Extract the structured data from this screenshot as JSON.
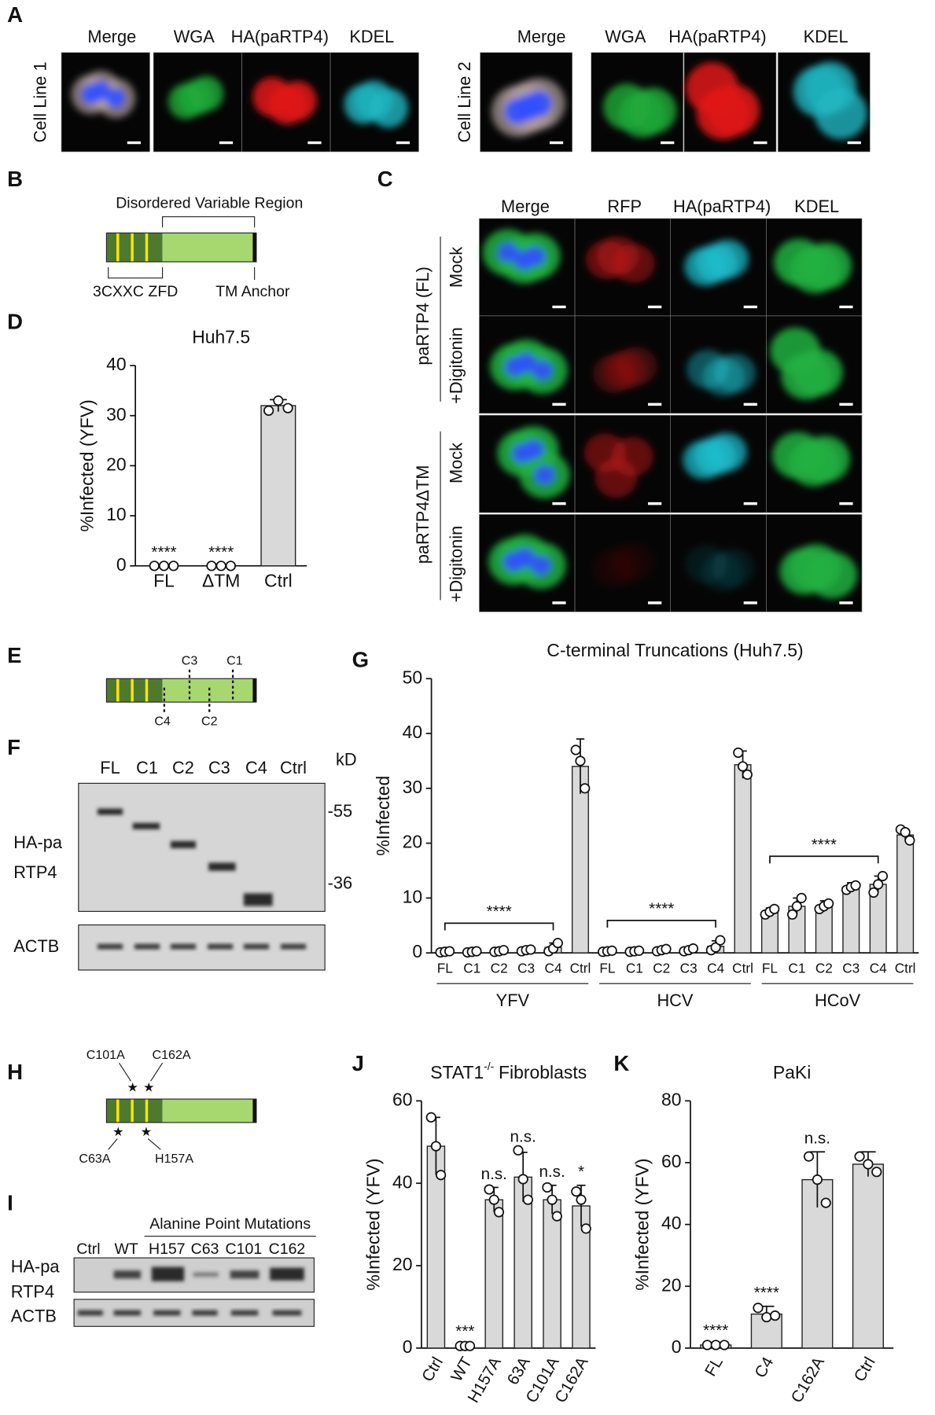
{
  "panel_labels": [
    "A",
    "B",
    "C",
    "D",
    "E",
    "F",
    "G",
    "H",
    "I",
    "J",
    "K"
  ],
  "panel_a": {
    "columns": [
      "Merge",
      "WGA",
      "HA(paRTP4)",
      "KDEL"
    ],
    "rows": [
      "Cell Line 1",
      "Cell Line 2"
    ]
  },
  "panel_b": {
    "region": "Disordered Variable Region",
    "zfd": "3CXXC ZFD",
    "tm": "TM Anchor"
  },
  "panel_c": {
    "columns": [
      "Merge",
      "RFP",
      "HA(paRTP4)",
      "KDEL"
    ],
    "constructs": [
      "paRTP4 (FL)",
      "paRTP4ΔTM"
    ],
    "treatments": [
      "Mock",
      "+Digitonin"
    ]
  },
  "panel_e": {
    "truncations": [
      "C1",
      "C2",
      "C3",
      "C4"
    ]
  },
  "panel_f": {
    "lanes": [
      "FL",
      "C1",
      "C2",
      "C3",
      "C4",
      "Ctrl"
    ],
    "unit": "kD",
    "markers": [
      "-55",
      "-36"
    ],
    "blots": [
      "HA-pa",
      "RTP4",
      "ACTB"
    ]
  },
  "panel_h": {
    "mutations": [
      "C63A",
      "C101A",
      "H157A",
      "C162A"
    ]
  },
  "panel_i": {
    "header": "Alanine Point Mutations",
    "lanes": [
      "Ctrl",
      "WT",
      "H157",
      "C63",
      "C101",
      "C162"
    ],
    "blots": [
      "HA-pa",
      "RTP4",
      "ACTB"
    ]
  },
  "chart_data": [
    {
      "type": "bar",
      "title": "Huh7.5",
      "ylabel": "%Infected (YFV)",
      "color": "#d9d9d9",
      "categories": [
        "FL",
        "ΔTM",
        "Ctrl"
      ],
      "values": [
        0,
        0,
        32
      ],
      "errors": [
        0,
        0,
        1.2
      ],
      "points": [
        [
          0,
          0,
          0
        ],
        [
          0,
          0,
          0
        ],
        [
          31,
          33,
          31.5
        ]
      ],
      "annotations": [
        "****",
        "****",
        null
      ],
      "ylim": [
        0,
        40
      ],
      "yticks": [
        0,
        10,
        20,
        30,
        40
      ]
    },
    {
      "type": "bar",
      "title": "C-terminal Truncations (Huh7.5)",
      "ylabel": "%Infected",
      "color": "#d9d9d9",
      "categories": [
        "FL",
        "C1",
        "C2",
        "C3",
        "C4",
        "Ctrl",
        "FL",
        "C1",
        "C2",
        "C3",
        "C4",
        "Ctrl",
        "FL",
        "C1",
        "C2",
        "C3",
        "C4",
        "Ctrl"
      ],
      "groups": [
        "YFV",
        "HCV",
        "HCoV"
      ],
      "group_annotations": [
        "****",
        "****",
        "****"
      ],
      "values": [
        0.2,
        0.2,
        0.3,
        0.5,
        1,
        34,
        0.3,
        0.3,
        0.5,
        0.5,
        1.2,
        34.3,
        7.5,
        8.5,
        8.5,
        12,
        12.5,
        21.5
      ],
      "errors": [
        0.2,
        0.2,
        0.3,
        0.3,
        0.8,
        5,
        0.2,
        0.2,
        0.3,
        0.3,
        1,
        2.5,
        0.7,
        1.5,
        1,
        0.8,
        1.5,
        1
      ],
      "points": [
        [
          0.1,
          0.2,
          0.3
        ],
        [
          0.1,
          0.2,
          0.3
        ],
        [
          0.2,
          0.3,
          0.5
        ],
        [
          0.3,
          0.5,
          0.6
        ],
        [
          0.3,
          0.8,
          1.8
        ],
        [
          37,
          35,
          30
        ],
        [
          0.2,
          0.3,
          0.4
        ],
        [
          0.2,
          0.3,
          0.4
        ],
        [
          0.3,
          0.5,
          0.7
        ],
        [
          0.3,
          0.5,
          0.8
        ],
        [
          0.5,
          1,
          2.3
        ],
        [
          36.5,
          34,
          32.5
        ],
        [
          7,
          7.5,
          8
        ],
        [
          7,
          8.5,
          10
        ],
        [
          8,
          8.5,
          9
        ],
        [
          11.5,
          12,
          12.3
        ],
        [
          11,
          12.5,
          14
        ],
        [
          22.5,
          22,
          20.5
        ]
      ],
      "ylim": [
        0,
        50
      ],
      "yticks": [
        0,
        10,
        20,
        30,
        40,
        50
      ]
    },
    {
      "type": "bar",
      "title": "STAT1",
      "title_superscript": "-/-",
      "title_suffix": "Fibroblasts",
      "ylabel": "%Infected (YFV)",
      "color": "#d9d9d9",
      "categories": [
        "Ctrl",
        "WT",
        "H157A",
        "63A",
        "C101A",
        "C162A"
      ],
      "values": [
        49,
        0.5,
        36,
        41.5,
        36,
        34.5
      ],
      "errors": [
        7,
        0.3,
        3,
        6,
        3.5,
        5
      ],
      "points": [
        [
          56,
          49,
          42
        ],
        [
          0.5,
          0.5,
          0.5
        ],
        [
          38.5,
          36,
          33
        ],
        [
          48,
          41,
          36
        ],
        [
          39,
          36,
          32
        ],
        [
          38,
          36,
          29
        ]
      ],
      "annotations": [
        null,
        "***",
        "n.s.",
        "n.s.",
        "n.s.",
        "*"
      ],
      "ylim": [
        0,
        60
      ],
      "yticks": [
        0,
        20,
        40,
        60
      ]
    },
    {
      "type": "bar",
      "title": "PaKi",
      "ylabel": "%Infected (YFV)",
      "color": "#d9d9d9",
      "categories": [
        "FL",
        "C4",
        "C162A",
        "Ctrl"
      ],
      "values": [
        1,
        11,
        54.5,
        59.5
      ],
      "errors": [
        0.3,
        2.5,
        9,
        4
      ],
      "points": [
        [
          1,
          1,
          1
        ],
        [
          13,
          10,
          10.5
        ],
        [
          62,
          54.5,
          47
        ],
        [
          62,
          59.5,
          57
        ]
      ],
      "annotations": [
        "****",
        "****",
        "n.s.",
        null
      ],
      "ylim": [
        0,
        80
      ],
      "yticks": [
        0,
        20,
        40,
        60,
        80
      ]
    }
  ]
}
